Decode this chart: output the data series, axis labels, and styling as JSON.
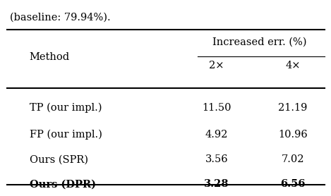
{
  "caption": "(baseline: 79.94%).",
  "header_col": "Method",
  "header_group": "Increased err. (%)",
  "subheaders": [
    "2×",
    "4×"
  ],
  "rows": [
    {
      "method": "TP (our impl.)",
      "v2x": "11.50",
      "v4x": "21.19",
      "bold": false
    },
    {
      "method": "FP (our impl.)",
      "v2x": "4.92",
      "v4x": "10.96",
      "bold": false
    },
    {
      "method": "Ours (SPR)",
      "v2x": "3.56",
      "v4x": "7.02",
      "bold": false
    },
    {
      "method": "Ours (DPR)",
      "v2x": "3.28",
      "v4x": "6.56",
      "bold": true
    }
  ],
  "col_method": 0.07,
  "col_2x": 0.62,
  "col_4x": 0.83,
  "fig_width": 4.5,
  "fig_height": 2.52,
  "fontsize": 10.5,
  "background": "#ffffff"
}
